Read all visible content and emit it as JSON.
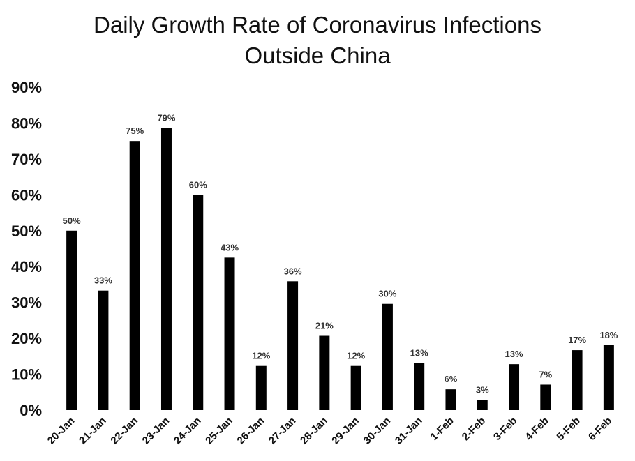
{
  "chart_data": {
    "type": "bar",
    "title_line1": "Daily Growth Rate of Coronavirus Infections",
    "title_line2": "Outside China",
    "categories": [
      "20-Jan",
      "21-Jan",
      "22-Jan",
      "23-Jan",
      "24-Jan",
      "25-Jan",
      "26-Jan",
      "27-Jan",
      "28-Jan",
      "29-Jan",
      "30-Jan",
      "31-Jan",
      "1-Feb",
      "2-Feb",
      "3-Feb",
      "4-Feb",
      "5-Feb",
      "6-Feb"
    ],
    "values": [
      50,
      33.3,
      75,
      78.6,
      60,
      42.5,
      12.3,
      35.9,
      20.7,
      12.3,
      29.6,
      13.1,
      5.8,
      2.8,
      12.8,
      7.1,
      16.7,
      18.1
    ],
    "data_labels": [
      "50%",
      "33%",
      "75%",
      "79%",
      "60%",
      "43%",
      "12%",
      "36%",
      "21%",
      "12%",
      "30%",
      "13%",
      "6%",
      "3%",
      "13%",
      "7%",
      "17%",
      "18%"
    ],
    "y_ticks": [
      "0%",
      "10%",
      "20%",
      "30%",
      "40%",
      "50%",
      "60%",
      "70%",
      "80%",
      "90%"
    ],
    "ylim": [
      0,
      90
    ],
    "grid": false,
    "bar_color": "#000000"
  }
}
